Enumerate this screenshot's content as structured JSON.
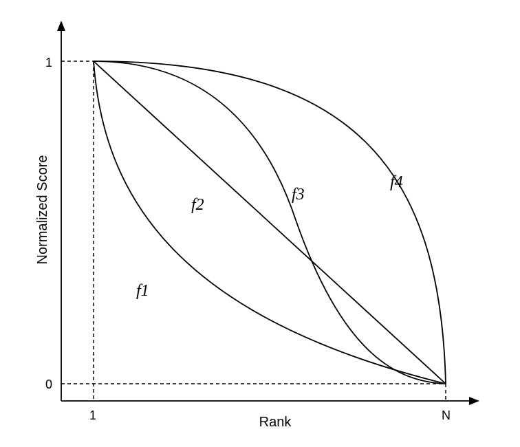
{
  "diagram": {
    "x_axis_label": "Rank",
    "y_axis_label": "Normalized Score",
    "x_ticks": [
      "1",
      "N"
    ],
    "y_ticks": [
      "1",
      "0"
    ],
    "curves": [
      {
        "id": "f1",
        "label": "f1"
      },
      {
        "id": "f2",
        "label": "f2"
      },
      {
        "id": "f3",
        "label": "f3"
      },
      {
        "id": "f4",
        "label": "f4"
      }
    ]
  }
}
